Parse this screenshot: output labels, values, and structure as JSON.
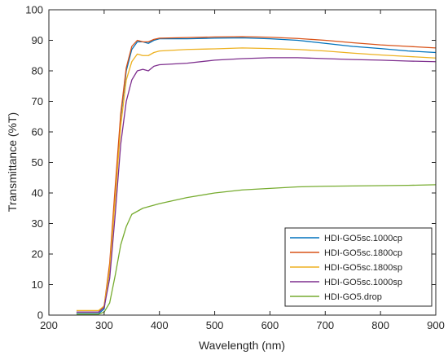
{
  "chart_data": {
    "type": "line",
    "xlabel": "Wavelength (nm)",
    "ylabel": "Transmittance (%T)",
    "xlim": [
      200,
      900
    ],
    "ylim": [
      0,
      100
    ],
    "xticks": [
      200,
      300,
      400,
      500,
      600,
      700,
      800,
      900
    ],
    "yticks": [
      0,
      10,
      20,
      30,
      40,
      50,
      60,
      70,
      80,
      90,
      100
    ],
    "xtick_labels": [
      "200",
      "300",
      "400",
      "500",
      "600",
      "700",
      "800",
      "900"
    ],
    "ytick_labels": [
      "0",
      "10",
      "20",
      "30",
      "40",
      "50",
      "60",
      "70",
      "80",
      "90",
      "100"
    ],
    "grid": false,
    "legend_position": "bottom-right",
    "series": [
      {
        "name": "HDI-GO5sc.1000cp",
        "color": "#0072BD",
        "x": [
          250,
          290,
          300,
          310,
          320,
          330,
          340,
          350,
          360,
          370,
          380,
          390,
          400,
          450,
          500,
          550,
          600,
          650,
          700,
          750,
          800,
          850,
          900
        ],
        "y": [
          0.5,
          0.5,
          2,
          15,
          40,
          65,
          80,
          87,
          89.5,
          89.5,
          89,
          90,
          90.5,
          90.5,
          90.7,
          90.8,
          90.5,
          90,
          89,
          88,
          87.3,
          86.5,
          86
        ]
      },
      {
        "name": "HDI-GO5sc.1800cp",
        "color": "#D95319",
        "x": [
          250,
          290,
          300,
          310,
          320,
          330,
          340,
          350,
          360,
          370,
          380,
          390,
          400,
          450,
          500,
          550,
          600,
          650,
          700,
          750,
          800,
          850,
          900
        ],
        "y": [
          1,
          1,
          3,
          17,
          42,
          66,
          81,
          88,
          90,
          89.5,
          89.5,
          90.3,
          90.7,
          90.9,
          91.1,
          91.2,
          91,
          90.6,
          90,
          89.2,
          88.5,
          88,
          87.5
        ]
      },
      {
        "name": "HDI-GO5sc.1800sp",
        "color": "#EDB120",
        "x": [
          250,
          290,
          300,
          310,
          320,
          330,
          340,
          350,
          360,
          370,
          380,
          390,
          400,
          450,
          500,
          550,
          600,
          650,
          700,
          750,
          800,
          850,
          900
        ],
        "y": [
          1.5,
          1.5,
          3,
          15,
          38,
          62,
          77,
          83,
          85.5,
          85,
          85,
          86,
          86.5,
          87,
          87.2,
          87.5,
          87.3,
          87,
          86.5,
          85.8,
          85.2,
          84.7,
          84.2
        ]
      },
      {
        "name": "HDI-GO5sc.1000sp",
        "color": "#7E2F8E",
        "x": [
          250,
          290,
          300,
          310,
          320,
          330,
          340,
          350,
          360,
          370,
          380,
          390,
          400,
          450,
          500,
          550,
          600,
          650,
          700,
          750,
          800,
          850,
          900
        ],
        "y": [
          1,
          1,
          2.5,
          12,
          33,
          56,
          70,
          77,
          80,
          80.5,
          80,
          81.5,
          82,
          82.5,
          83.5,
          84,
          84.3,
          84.3,
          84,
          83.7,
          83.5,
          83.2,
          83
        ]
      },
      {
        "name": "HDI-GO5.drop",
        "color": "#77AC30",
        "x": [
          250,
          290,
          300,
          310,
          320,
          330,
          340,
          350,
          360,
          370,
          380,
          390,
          400,
          450,
          500,
          550,
          600,
          650,
          700,
          750,
          800,
          850,
          900
        ],
        "y": [
          0.3,
          0.3,
          1,
          4,
          13,
          23,
          29,
          33,
          34,
          35,
          35.5,
          36,
          36.5,
          38.5,
          40,
          41,
          41.5,
          42,
          42.2,
          42.3,
          42.4,
          42.5,
          42.7
        ]
      }
    ]
  }
}
